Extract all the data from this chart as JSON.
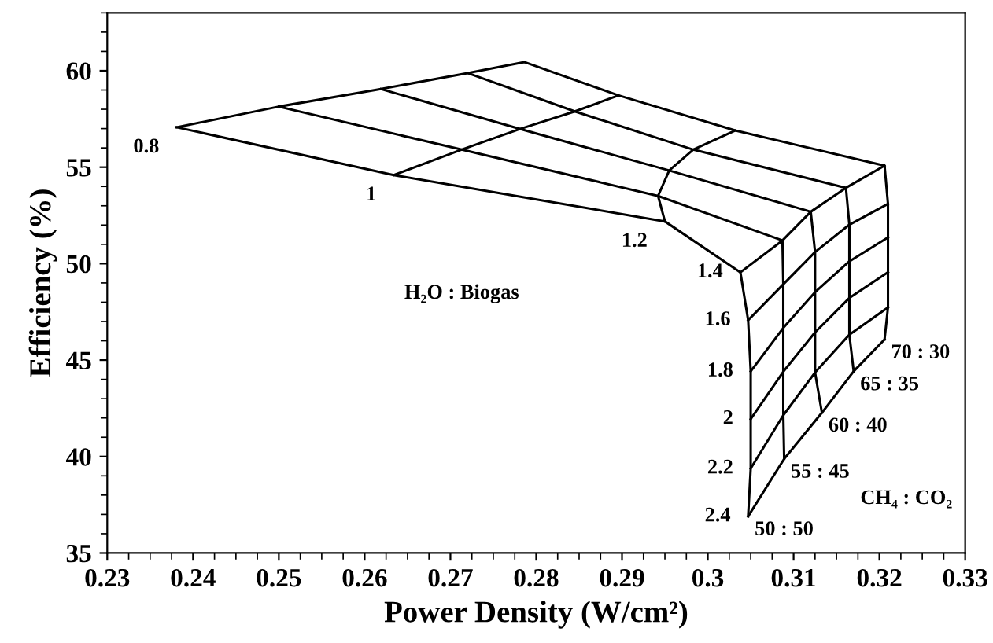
{
  "chart_data": {
    "type": "line",
    "xlabel": "Power Density (W/cm²)",
    "ylabel": "Efficiency (%)",
    "xlim": [
      0.23,
      0.33
    ],
    "xticks": [
      0.23,
      0.24,
      0.25,
      0.26,
      0.27,
      0.28,
      0.29,
      0.3,
      0.31,
      0.32,
      0.33
    ],
    "ylim": [
      35,
      63
    ],
    "yticks": [
      35,
      40,
      45,
      50,
      55,
      60
    ],
    "grid": false,
    "legend": false,
    "marker": "none",
    "line_style": "solid",
    "series": [
      {
        "color": "#000000",
        "x": [
          0.2381,
          0.2634,
          0.295,
          0.3038,
          0.3047,
          0.305,
          0.305,
          0.305,
          0.3047
        ],
        "values": [
          57.07,
          54.59,
          52.19,
          49.55,
          47.07,
          44.42,
          41.94,
          39.38,
          36.9
        ]
      },
      {
        "color": "#000000",
        "x": [
          0.25,
          0.2713,
          0.2942,
          0.3087,
          0.3088,
          0.3088,
          0.3088,
          0.3088,
          0.3089
        ],
        "values": [
          58.14,
          55.91,
          53.51,
          51.2,
          48.93,
          46.67,
          44.4,
          42.14,
          39.88
        ]
      },
      {
        "color": "#000000",
        "x": [
          0.2619,
          0.2781,
          0.2955,
          0.312,
          0.3125,
          0.3125,
          0.3125,
          0.3125,
          0.3133
        ],
        "values": [
          59.05,
          56.98,
          54.83,
          52.69,
          50.6,
          48.52,
          46.44,
          44.36,
          42.27
        ]
      },
      {
        "color": "#000000",
        "x": [
          0.272,
          0.2845,
          0.2983,
          0.3161,
          0.3165,
          0.3165,
          0.3165,
          0.3165,
          0.317
        ],
        "values": [
          59.88,
          57.89,
          55.91,
          53.93,
          52.02,
          50.12,
          48.22,
          46.32,
          44.42
        ]
      },
      {
        "color": "#000000",
        "x": [
          0.2786,
          0.2896,
          0.3032,
          0.3206,
          0.321,
          0.321,
          0.321,
          0.321,
          0.3206
        ],
        "values": [
          60.45,
          58.72,
          56.9,
          55.08,
          53.1,
          51.36,
          49.55,
          47.73,
          46.07
        ]
      },
      {
        "color": "#000000",
        "x": [
          0.2381,
          0.25,
          0.2619,
          0.272,
          0.2786
        ],
        "values": [
          57.07,
          58.14,
          59.05,
          59.88,
          60.45
        ]
      },
      {
        "color": "#000000",
        "x": [
          0.2634,
          0.2713,
          0.2781,
          0.2845,
          0.2896
        ],
        "values": [
          54.59,
          55.91,
          56.98,
          57.89,
          58.72
        ]
      },
      {
        "color": "#000000",
        "x": [
          0.295,
          0.2942,
          0.2955,
          0.2983,
          0.3032
        ],
        "values": [
          52.19,
          53.51,
          54.83,
          55.91,
          56.9
        ]
      },
      {
        "color": "#000000",
        "x": [
          0.3038,
          0.3087,
          0.312,
          0.3161,
          0.3206
        ],
        "values": [
          49.55,
          51.2,
          52.69,
          53.93,
          55.08
        ]
      },
      {
        "color": "#000000",
        "x": [
          0.3047,
          0.3088,
          0.3125,
          0.3165,
          0.321
        ],
        "values": [
          47.07,
          48.93,
          50.6,
          52.02,
          53.1
        ]
      },
      {
        "color": "#000000",
        "x": [
          0.305,
          0.3088,
          0.3125,
          0.3165,
          0.321
        ],
        "values": [
          44.42,
          46.67,
          48.52,
          50.12,
          51.36
        ]
      },
      {
        "color": "#000000",
        "x": [
          0.305,
          0.3088,
          0.3125,
          0.3165,
          0.321
        ],
        "values": [
          41.94,
          44.4,
          46.44,
          48.22,
          49.55
        ]
      },
      {
        "color": "#000000",
        "x": [
          0.305,
          0.3088,
          0.3125,
          0.3165,
          0.321
        ],
        "values": [
          39.38,
          42.14,
          44.36,
          46.32,
          47.73
        ]
      },
      {
        "color": "#000000",
        "x": [
          0.3047,
          0.3089,
          0.3133,
          0.317,
          0.3206
        ],
        "values": [
          36.9,
          39.88,
          42.27,
          44.42,
          46.07
        ]
      }
    ],
    "annotations": [
      {
        "text": "0.8",
        "x": 0.2381,
        "y": 57.07
      },
      {
        "text": "1",
        "x": 0.2634,
        "y": 54.59
      },
      {
        "text": "1.2",
        "x": 0.295,
        "y": 52.19
      },
      {
        "text": "1.4",
        "x": 0.3038,
        "y": 49.55
      },
      {
        "text": "1.6",
        "x": 0.3047,
        "y": 47.07
      },
      {
        "text": "1.8",
        "x": 0.305,
        "y": 44.42
      },
      {
        "text": "2",
        "x": 0.305,
        "y": 41.94
      },
      {
        "text": "2.2",
        "x": 0.305,
        "y": 39.38
      },
      {
        "text": "2.4",
        "x": 0.3047,
        "y": 36.9
      },
      {
        "text": "50 : 50",
        "x": 0.3047,
        "y": 36.9
      },
      {
        "text": "55 : 45",
        "x": 0.3089,
        "y": 39.88
      },
      {
        "text": "60 : 40",
        "x": 0.3133,
        "y": 42.27
      },
      {
        "text": "65 : 35",
        "x": 0.317,
        "y": 44.42
      },
      {
        "text": "70 : 30",
        "x": 0.3206,
        "y": 46.07
      },
      "H₂O : Biogas",
      "CH₄ : CO₂"
    ]
  }
}
